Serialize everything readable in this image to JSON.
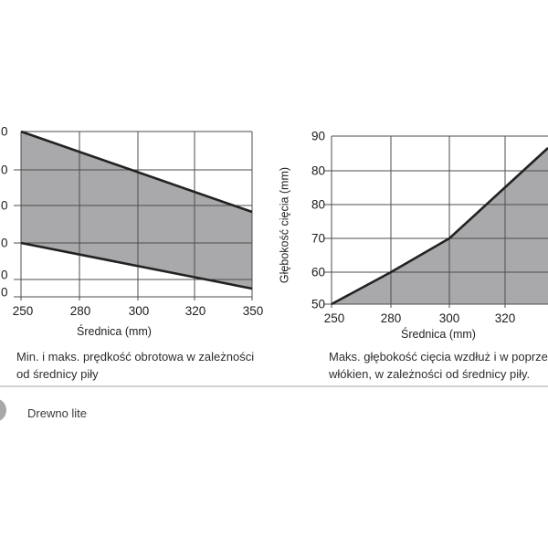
{
  "charts": {
    "left": {
      "y_tick_fragments": [
        "0",
        "0",
        "0",
        "0",
        "0",
        "0"
      ],
      "x_ticks": [
        "250",
        "280",
        "300",
        "320",
        "350"
      ],
      "x_axis_label": "Średnica (mm)",
      "caption_line1": "Min. i maks. prędkość obrotowa w zależności",
      "caption_line2": "od średnicy piły",
      "band_points": "23,144 276,232 276,316 23,266",
      "band_top_line": "23,144 276,232",
      "band_bottom_line": "23,266 276,316"
    },
    "right": {
      "y_axis_label": "Głębokość cięcia (mm)",
      "y_ticks": [
        "90",
        "80",
        "80",
        "70",
        "60",
        "50"
      ],
      "x_ticks": [
        "250",
        "280",
        "300",
        "320"
      ],
      "x_axis_label": "Średnica (mm)",
      "caption_line1": "Maks. głębokość cięcia wzdłuż i w poprzek",
      "caption_line2": "włókien, w zależności od średnicy piły.",
      "area_points": "363,333 428,298 492,261 600,162 600,333",
      "line_points": "363,333 428,298 492,261 600,162"
    }
  },
  "footer": {
    "label": "Drewno lite"
  },
  "colors": {
    "area_fill": "#a9a9ab",
    "thick_line": "#222222",
    "gridline": "#4d4d4d",
    "divider": "#d2d2d2",
    "footer_circle": "#a8a8a8"
  },
  "chart_data": [
    {
      "type": "area",
      "title": "Min. i maks. prędkość obrotowa w zależności od średnicy piły",
      "xlabel": "Średnica (mm)",
      "ylabel": "(cut off at left image edge — only trailing \"0\" of each y tick label is visible)",
      "x_ticks": [
        250,
        280,
        300,
        320,
        350
      ],
      "x_axis_note": "tick values are rendered at equal pixel spacing despite unequal numeric intervals (non-linear axis); chart is clipped at the left image edge",
      "y_tick_labels_visible": [
        "…0",
        "…0",
        "…0",
        "…0",
        "…0",
        "…0"
      ],
      "y_gridline_note": "6 horizontal gridlines; bottom two are half-spaced",
      "series": [
        {
          "name": "maks. prędkość obrotowa (upper boundary)",
          "x": [
            250,
            350
          ],
          "value_as_fraction_of_plot_height_from_top": [
            0.0,
            0.49
          ]
        },
        {
          "name": "min. prędkość obrotowa (lower boundary)",
          "x": [
            250,
            350
          ],
          "value_as_fraction_of_plot_height_from_top": [
            0.67,
            0.95
          ]
        }
      ],
      "fill": "gray band between min and max boundaries",
      "grid": true,
      "legend": false
    },
    {
      "type": "area",
      "title": "Maks. głębokość cięcia wzdłuż i w poprzek włókien, w zależności od średnicy piły.",
      "xlabel": "Średnica (mm)",
      "ylabel": "Głębokość cięcia (mm)",
      "x_ticks": [
        250,
        280,
        300,
        320
      ],
      "x_axis_note": "axis continues past 320 but is clipped by the right image edge; ticks equally spaced (non-linear axis)",
      "y_tick_labels_as_printed": [
        90,
        80,
        80,
        70,
        60,
        50
      ],
      "ylim": [
        50,
        90
      ],
      "series": [
        {
          "name": "maks. głębokość cięcia",
          "points": [
            [
              250,
              50
            ],
            [
              280,
              60
            ],
            [
              300,
              70
            ],
            [
              320,
              80
            ],
            [
              "~337 (clipped edge)",
              87
            ]
          ]
        }
      ],
      "fill": "gray area below the curve",
      "grid": true,
      "legend": false
    }
  ]
}
